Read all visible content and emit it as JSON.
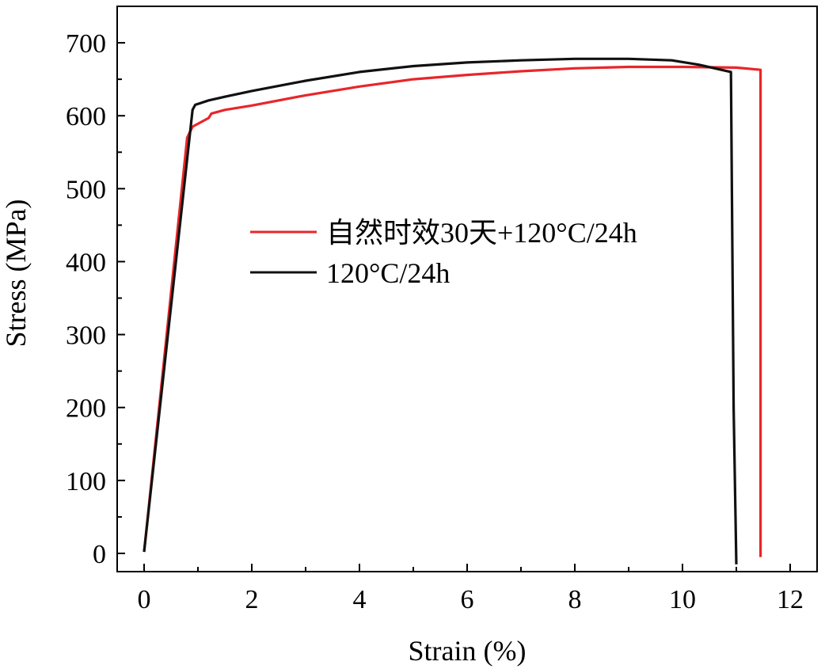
{
  "chart_data": {
    "type": "line",
    "title": "",
    "xlabel": "Strain (%)",
    "ylabel": "Stress (MPa)",
    "xlim": [
      -0.5,
      12.5
    ],
    "ylim": [
      -25,
      750
    ],
    "xticks": [
      0,
      2,
      4,
      6,
      8,
      10,
      12
    ],
    "yticks": [
      0,
      100,
      200,
      300,
      400,
      500,
      600,
      700
    ],
    "xtick_labels": [
      "0",
      "2",
      "4",
      "6",
      "8",
      "10",
      "12"
    ],
    "ytick_labels": [
      "0",
      "100",
      "200",
      "300",
      "400",
      "500",
      "600",
      "700"
    ],
    "grid": false,
    "legend_position": "center",
    "series": [
      {
        "name": "自然时效30天+120°C/24h",
        "color": "#e8262a",
        "x": [
          0.0,
          0.8,
          0.9,
          1.2,
          1.25,
          1.5,
          2.0,
          3.0,
          4.0,
          5.0,
          6.0,
          7.0,
          8.0,
          9.0,
          10.0,
          11.0,
          11.45,
          11.45
        ],
        "y": [
          2,
          570,
          585,
          597,
          603,
          608,
          614,
          628,
          640,
          650,
          656,
          661,
          665,
          667,
          667,
          666,
          663,
          -5
        ]
      },
      {
        "name": "120°C/24h",
        "color": "#111111",
        "x": [
          0.0,
          0.9,
          0.95,
          1.2,
          1.5,
          2.0,
          3.0,
          4.0,
          5.0,
          6.0,
          7.0,
          8.0,
          9.0,
          9.8,
          10.3,
          10.9,
          10.95,
          11.0
        ],
        "y": [
          2,
          608,
          615,
          621,
          626,
          634,
          648,
          660,
          668,
          673,
          676,
          678,
          678,
          676,
          670,
          660,
          200,
          -15
        ]
      }
    ]
  }
}
